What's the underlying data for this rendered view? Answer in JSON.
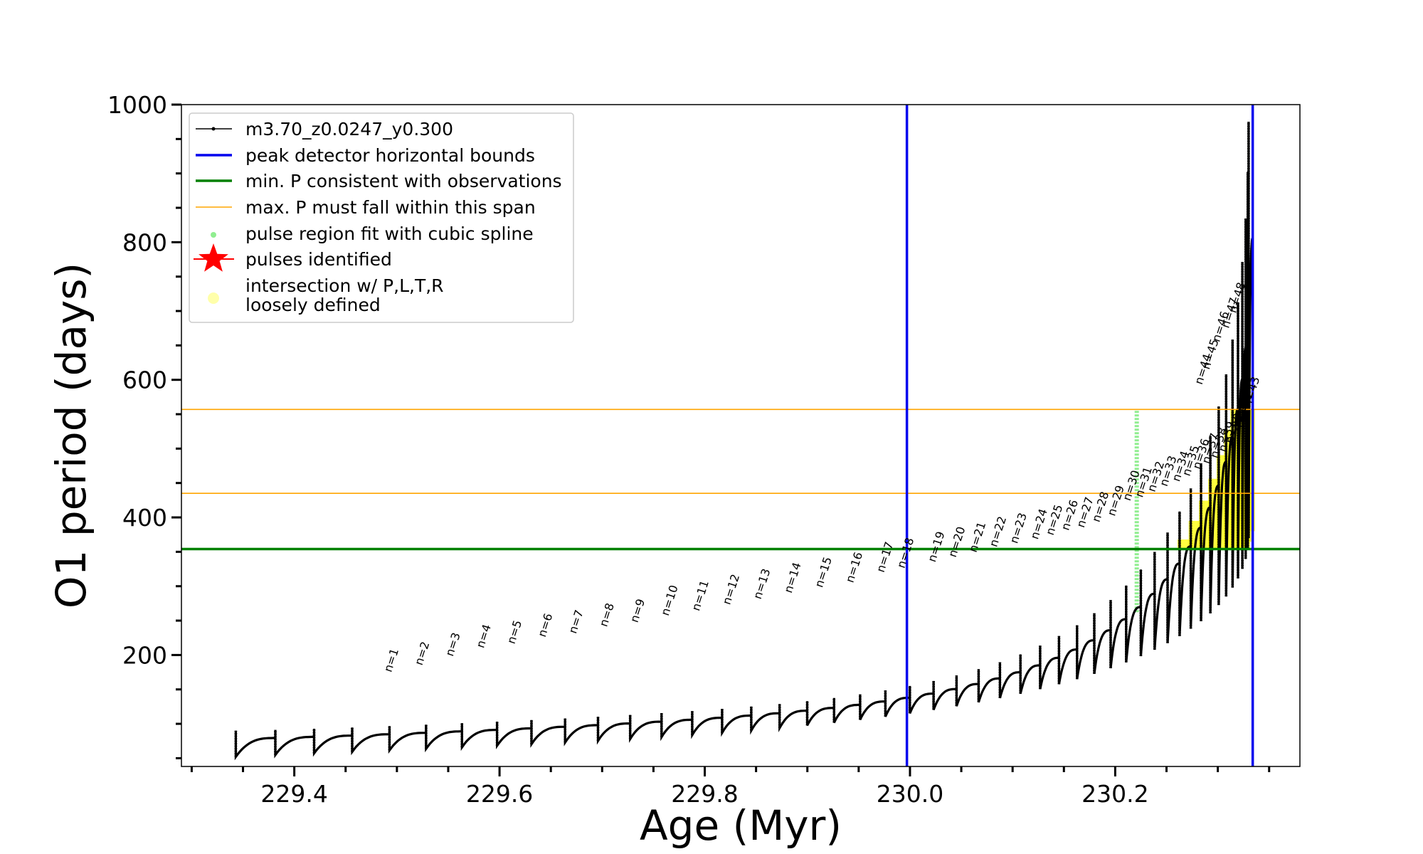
{
  "chart_data": {
    "type": "line",
    "title": "",
    "xlabel": "Age (Myr)",
    "ylabel": "O1 period (days)",
    "xlim": [
      229.29,
      230.38
    ],
    "ylim": [
      38,
      1000
    ],
    "xticks_major": [
      229.4,
      229.6,
      229.8,
      230.0,
      230.2
    ],
    "xtick_labels": [
      "229.4",
      "229.6",
      "229.8",
      "230.0",
      "230.2"
    ],
    "yticks_major": [
      200,
      400,
      600,
      800,
      1000
    ],
    "ytick_labels": [
      "200",
      "400",
      "600",
      "800",
      "1000"
    ],
    "grid": false,
    "legend_position": "top-left",
    "vertical_lines": [
      229.997,
      230.334
    ],
    "min_period_line": 354,
    "max_period_span": [
      435,
      557
    ],
    "model_pulses": {
      "start_age": 229.343,
      "end_age": 230.33,
      "count": 48,
      "lead_up": 0.013,
      "first_peak": 90,
      "first_base": 52,
      "last_peak": 975,
      "last_base": 370
    },
    "labeled_pulses": [
      {
        "n": "n=1",
        "age": 229.491,
        "peak": 170
      },
      {
        "n": "n=2",
        "age": 229.521,
        "peak": 180
      },
      {
        "n": "n=3",
        "age": 229.551,
        "peak": 193
      },
      {
        "n": "n=4",
        "age": 229.581,
        "peak": 205
      },
      {
        "n": "n=5",
        "age": 229.611,
        "peak": 211
      },
      {
        "n": "n=6",
        "age": 229.641,
        "peak": 221
      },
      {
        "n": "n=7",
        "age": 229.671,
        "peak": 226
      },
      {
        "n": "n=8",
        "age": 229.701,
        "peak": 236
      },
      {
        "n": "n=9",
        "age": 229.731,
        "peak": 242
      },
      {
        "n": "n=10",
        "age": 229.761,
        "peak": 252
      },
      {
        "n": "n=11",
        "age": 229.791,
        "peak": 259
      },
      {
        "n": "n=12",
        "age": 229.821,
        "peak": 268
      },
      {
        "n": "n=13",
        "age": 229.851,
        "peak": 276
      },
      {
        "n": "n=14",
        "age": 229.881,
        "peak": 285
      },
      {
        "n": "n=15",
        "age": 229.911,
        "peak": 293
      },
      {
        "n": "n=16",
        "age": 229.941,
        "peak": 300
      },
      {
        "n": "n=17",
        "age": 229.971,
        "peak": 315
      },
      {
        "n": "n=18",
        "age": 229.991,
        "peak": 321
      },
      {
        "n": "n=19",
        "age": 230.021,
        "peak": 330
      },
      {
        "n": "n=20",
        "age": 230.041,
        "peak": 337
      },
      {
        "n": "n=21",
        "age": 230.061,
        "peak": 344
      },
      {
        "n": "n=22",
        "age": 230.081,
        "peak": 352
      },
      {
        "n": "n=23",
        "age": 230.101,
        "peak": 357
      },
      {
        "n": "n=24",
        "age": 230.121,
        "peak": 363
      },
      {
        "n": "n=25",
        "age": 230.136,
        "peak": 369
      },
      {
        "n": "n=26",
        "age": 230.151,
        "peak": 376
      },
      {
        "n": "n=27",
        "age": 230.166,
        "peak": 380
      },
      {
        "n": "n=28",
        "age": 230.181,
        "peak": 388
      },
      {
        "n": "n=29",
        "age": 230.196,
        "peak": 397
      },
      {
        "n": "n=30",
        "age": 230.211,
        "peak": 419
      },
      {
        "n": "n=31",
        "age": 230.223,
        "peak": 424
      },
      {
        "n": "n=32",
        "age": 230.235,
        "peak": 432
      },
      {
        "n": "n=33",
        "age": 230.247,
        "peak": 440
      },
      {
        "n": "n=34",
        "age": 230.259,
        "peak": 447
      },
      {
        "n": "n=35",
        "age": 230.269,
        "peak": 455
      },
      {
        "n": "n=36",
        "age": 230.279,
        "peak": 465
      },
      {
        "n": "n=37",
        "age": 230.288,
        "peak": 473
      },
      {
        "n": "n=38",
        "age": 230.296,
        "peak": 481
      },
      {
        "n": "n=39",
        "age": 230.304,
        "peak": 490
      },
      {
        "n": "n=40",
        "age": 230.311,
        "peak": 502
      },
      {
        "n": "n=41",
        "age": 230.318,
        "peak": 520
      },
      {
        "n": "n=42",
        "age": 230.322,
        "peak": 535
      },
      {
        "n": "n=43",
        "age": 230.328,
        "peak": 555
      },
      {
        "n": "n=44",
        "age": 230.281,
        "peak": 588
      },
      {
        "n": "n=45",
        "age": 230.288,
        "peak": 610
      },
      {
        "n": "n=46",
        "age": 230.298,
        "peak": 650
      },
      {
        "n": "n=47",
        "age": 230.307,
        "peak": 670
      },
      {
        "n": "n=48",
        "age": 230.314,
        "peak": 692
      }
    ],
    "legend": [
      {
        "label": "m3.70_z0.0247_y0.300",
        "marker": "line-dot",
        "color": "#000000"
      },
      {
        "label": "peak detector horizontal bounds",
        "marker": "line",
        "color": "#0000ee"
      },
      {
        "label": "min. P consistent with observations",
        "marker": "line",
        "color": "#008000"
      },
      {
        "label": "max. P must fall within this span",
        "marker": "thin-line",
        "color": "#ffa500"
      },
      {
        "label": "pulse region fit with cubic spline",
        "marker": "dot",
        "color": "#90ee90"
      },
      {
        "label": "pulses identified",
        "marker": "star",
        "color": "#ff0000"
      },
      {
        "label": "intersection w/ P,L,T,R",
        "label2": "loosely defined",
        "marker": "blob",
        "color": "#ffffaa"
      }
    ],
    "colors": {
      "model": "#000000",
      "bounds": "#0000ee",
      "min_p": "#008000",
      "max_p": "#ffa500",
      "spline": "#90ee90",
      "intersection": "#ffff00"
    }
  }
}
